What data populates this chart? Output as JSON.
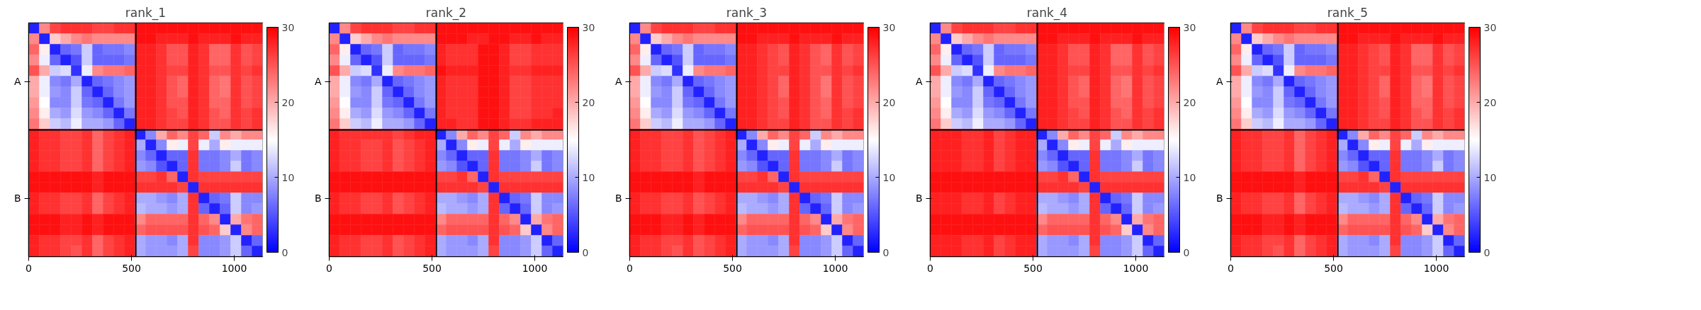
{
  "chart_data": [
    {
      "type": "heatmap",
      "title": "rank_1",
      "xlim": [
        0,
        1138
      ],
      "xticks": [
        0,
        500,
        1000
      ],
      "y_categories": [
        null,
        null,
        null,
        null,
        null,
        "A",
        null,
        null,
        null,
        null,
        null,
        null,
        null,
        null,
        null,
        null,
        "B",
        null,
        null,
        null,
        null,
        null
      ],
      "clim": [
        0,
        30
      ],
      "cticks": [
        0,
        10,
        20,
        30
      ],
      "grid": false,
      "ref_lines": [
        {
          "axis": "x",
          "value": 521,
          "color": "#000000"
        }
      ],
      "cells": [
        [
          2,
          22,
          26,
          27,
          27,
          27,
          26,
          26,
          27,
          27,
          29,
          29,
          29,
          29,
          29,
          29,
          29,
          29,
          29,
          29,
          29,
          29
        ],
        [
          22,
          2,
          18,
          20,
          22,
          23,
          22,
          22,
          22,
          22,
          29,
          29,
          28,
          28,
          28,
          29,
          28,
          28,
          28,
          29,
          28,
          28
        ],
        [
          24,
          16,
          2,
          6,
          7,
          12,
          6,
          7,
          7,
          8,
          28,
          28,
          27,
          25,
          25,
          28,
          27,
          24,
          24,
          27,
          25,
          26
        ],
        [
          22,
          14,
          6,
          2,
          5,
          12,
          6,
          6,
          6,
          7,
          28,
          28,
          27,
          25,
          25,
          28,
          27,
          24,
          24,
          27,
          25,
          26
        ],
        [
          25,
          20,
          12,
          13,
          3,
          14,
          22,
          23,
          23,
          24,
          28,
          28,
          27,
          26,
          26,
          28,
          27,
          25,
          25,
          27,
          26,
          27
        ],
        [
          20,
          14,
          8,
          7,
          10,
          2,
          6,
          7,
          8,
          9,
          28,
          28,
          27,
          25,
          24,
          28,
          27,
          24,
          23,
          27,
          25,
          26
        ],
        [
          20,
          14,
          9,
          8,
          12,
          6,
          2,
          6,
          8,
          9,
          28,
          28,
          27,
          25,
          24,
          28,
          27,
          24,
          23,
          27,
          25,
          26
        ],
        [
          21,
          15,
          8,
          8,
          12,
          7,
          6,
          2,
          7,
          9,
          28,
          28,
          27,
          25,
          25,
          28,
          27,
          24,
          24,
          27,
          25,
          26
        ],
        [
          22,
          16,
          10,
          9,
          13,
          9,
          8,
          6,
          2,
          7,
          28,
          28,
          27,
          26,
          25,
          28,
          27,
          25,
          24,
          27,
          26,
          27
        ],
        [
          23,
          18,
          12,
          11,
          14,
          10,
          10,
          9,
          6,
          2,
          28,
          28,
          27,
          26,
          26,
          28,
          27,
          25,
          25,
          27,
          26,
          27
        ],
        [
          28,
          27,
          27,
          26,
          26,
          27,
          24,
          26,
          27,
          28,
          2,
          8,
          20,
          24,
          22,
          26,
          24,
          12,
          22,
          20,
          22,
          22
        ],
        [
          28,
          27,
          27,
          26,
          26,
          27,
          24,
          26,
          27,
          28,
          10,
          2,
          8,
          16,
          14,
          26,
          14,
          10,
          16,
          14,
          14,
          14
        ],
        [
          28,
          27,
          27,
          26,
          26,
          27,
          24,
          26,
          27,
          28,
          8,
          6,
          2,
          6,
          6,
          27,
          7,
          7,
          8,
          10,
          7,
          8
        ],
        [
          28,
          27,
          27,
          26,
          26,
          27,
          24,
          26,
          27,
          28,
          9,
          8,
          5,
          2,
          6,
          27,
          7,
          7,
          8,
          12,
          7,
          8
        ],
        [
          29,
          29,
          29,
          29,
          29,
          29,
          28,
          29,
          29,
          29,
          26,
          26,
          27,
          24,
          2,
          27,
          26,
          26,
          26,
          26,
          26,
          26
        ],
        [
          29,
          29,
          29,
          29,
          29,
          29,
          28,
          29,
          29,
          29,
          27,
          27,
          27,
          27,
          26,
          2,
          27,
          27,
          27,
          27,
          27,
          27
        ],
        [
          28,
          27,
          27,
          26,
          26,
          27,
          24,
          26,
          27,
          28,
          10,
          10,
          9,
          8,
          10,
          27,
          2,
          6,
          7,
          12,
          8,
          8
        ],
        [
          28,
          27,
          27,
          26,
          26,
          27,
          24,
          26,
          27,
          28,
          11,
          10,
          10,
          9,
          10,
          27,
          6,
          2,
          6,
          12,
          8,
          9
        ],
        [
          29,
          29,
          29,
          28,
          28,
          29,
          28,
          29,
          29,
          29,
          22,
          24,
          24,
          24,
          24,
          27,
          24,
          22,
          2,
          20,
          23,
          24
        ],
        [
          29,
          29,
          29,
          28,
          28,
          29,
          28,
          29,
          29,
          29,
          24,
          25,
          25,
          25,
          25,
          27,
          25,
          24,
          18,
          2,
          22,
          24
        ],
        [
          28,
          27,
          27,
          26,
          26,
          27,
          24,
          26,
          27,
          28,
          10,
          9,
          9,
          8,
          10,
          27,
          8,
          8,
          9,
          12,
          2,
          6
        ],
        [
          28,
          27,
          27,
          26,
          25,
          27,
          24,
          26,
          27,
          28,
          10,
          9,
          9,
          9,
          10,
          26,
          8,
          8,
          9,
          12,
          6,
          2
        ]
      ]
    },
    {
      "type": "heatmap",
      "title": "rank_2",
      "xlim": [
        0,
        1138
      ],
      "xticks": [
        0,
        500,
        1000
      ],
      "y_categories": [
        null,
        null,
        null,
        null,
        null,
        "A",
        null,
        null,
        null,
        null,
        null,
        null,
        null,
        null,
        null,
        null,
        "B",
        null,
        null,
        null,
        null,
        null
      ],
      "clim": [
        0,
        30
      ],
      "cticks": [
        0,
        10,
        20,
        30
      ],
      "grid": false,
      "ref_lines": [
        {
          "axis": "x",
          "value": 521,
          "color": "#000000"
        }
      ],
      "cells": [
        [
          2,
          22,
          26,
          27,
          27,
          27,
          26,
          26,
          27,
          27,
          29,
          29,
          29,
          29,
          29,
          29,
          29,
          29,
          29,
          29,
          29,
          29
        ],
        [
          22,
          2,
          18,
          20,
          22,
          23,
          22,
          22,
          22,
          22,
          29,
          29,
          29,
          28,
          28,
          29,
          29,
          28,
          28,
          29,
          28,
          28
        ],
        [
          24,
          16,
          2,
          6,
          7,
          12,
          6,
          7,
          7,
          8,
          28,
          27,
          27,
          27,
          29,
          29,
          28,
          26,
          26,
          27,
          27,
          27
        ],
        [
          22,
          14,
          6,
          2,
          5,
          12,
          6,
          6,
          6,
          7,
          28,
          27,
          27,
          27,
          29,
          29,
          28,
          26,
          26,
          27,
          27,
          27
        ],
        [
          25,
          20,
          12,
          13,
          3,
          14,
          22,
          23,
          23,
          24,
          29,
          28,
          28,
          28,
          29,
          29,
          28,
          27,
          27,
          28,
          28,
          28
        ],
        [
          20,
          14,
          8,
          7,
          10,
          2,
          6,
          7,
          8,
          9,
          28,
          27,
          27,
          27,
          29,
          29,
          28,
          26,
          26,
          27,
          27,
          27
        ],
        [
          20,
          14,
          9,
          8,
          12,
          6,
          2,
          6,
          8,
          9,
          28,
          27,
          27,
          27,
          29,
          29,
          28,
          26,
          26,
          27,
          27,
          27
        ],
        [
          21,
          15,
          8,
          8,
          12,
          7,
          6,
          2,
          7,
          9,
          28,
          27,
          27,
          27,
          29,
          29,
          28,
          26,
          26,
          27,
          27,
          27
        ],
        [
          22,
          16,
          10,
          9,
          13,
          9,
          8,
          6,
          2,
          7,
          28,
          27,
          27,
          27,
          29,
          29,
          28,
          26,
          26,
          27,
          27,
          28
        ],
        [
          23,
          18,
          12,
          11,
          14,
          10,
          10,
          9,
          6,
          2,
          28,
          28,
          27,
          27,
          29,
          29,
          28,
          27,
          27,
          28,
          28,
          28
        ],
        [
          28,
          27,
          27,
          27,
          27,
          27,
          26,
          27,
          28,
          28,
          2,
          8,
          20,
          24,
          22,
          26,
          24,
          12,
          22,
          20,
          22,
          22
        ],
        [
          28,
          27,
          27,
          26,
          26,
          27,
          25,
          26,
          27,
          28,
          10,
          2,
          8,
          16,
          14,
          26,
          14,
          10,
          16,
          14,
          14,
          14
        ],
        [
          28,
          27,
          27,
          26,
          26,
          27,
          25,
          26,
          27,
          28,
          8,
          6,
          2,
          6,
          6,
          27,
          7,
          7,
          8,
          10,
          7,
          8
        ],
        [
          28,
          27,
          27,
          26,
          26,
          27,
          25,
          26,
          27,
          28,
          9,
          8,
          5,
          2,
          6,
          27,
          7,
          7,
          8,
          12,
          7,
          8
        ],
        [
          29,
          29,
          29,
          29,
          29,
          29,
          29,
          29,
          29,
          29,
          26,
          26,
          27,
          24,
          2,
          27,
          26,
          26,
          26,
          26,
          26,
          26
        ],
        [
          29,
          29,
          29,
          29,
          29,
          29,
          29,
          29,
          29,
          29,
          27,
          27,
          27,
          27,
          26,
          2,
          27,
          27,
          27,
          27,
          27,
          27
        ],
        [
          28,
          27,
          27,
          26,
          26,
          27,
          25,
          26,
          27,
          28,
          10,
          10,
          9,
          8,
          10,
          27,
          2,
          6,
          7,
          12,
          8,
          8
        ],
        [
          28,
          27,
          27,
          26,
          26,
          27,
          25,
          26,
          27,
          28,
          11,
          10,
          10,
          9,
          10,
          27,
          6,
          2,
          6,
          12,
          8,
          9
        ],
        [
          29,
          29,
          29,
          29,
          29,
          29,
          29,
          29,
          29,
          29,
          22,
          24,
          24,
          24,
          24,
          27,
          24,
          22,
          2,
          20,
          23,
          24
        ],
        [
          29,
          29,
          29,
          29,
          29,
          29,
          29,
          29,
          29,
          29,
          24,
          25,
          25,
          25,
          25,
          27,
          25,
          24,
          18,
          2,
          22,
          24
        ],
        [
          28,
          27,
          27,
          26,
          26,
          27,
          25,
          26,
          27,
          28,
          10,
          9,
          9,
          8,
          10,
          27,
          8,
          8,
          9,
          12,
          2,
          6
        ],
        [
          28,
          27,
          27,
          26,
          26,
          27,
          25,
          26,
          27,
          28,
          10,
          9,
          9,
          9,
          10,
          26,
          8,
          8,
          9,
          12,
          6,
          2
        ]
      ]
    },
    {
      "type": "heatmap",
      "title": "rank_3",
      "xlim": [
        0,
        1138
      ],
      "xticks": [
        0,
        500,
        1000
      ],
      "y_categories": [
        null,
        null,
        null,
        null,
        null,
        "A",
        null,
        null,
        null,
        null,
        null,
        null,
        null,
        null,
        null,
        null,
        "B",
        null,
        null,
        null,
        null,
        null
      ],
      "clim": [
        0,
        30
      ],
      "cticks": [
        0,
        10,
        20,
        30
      ],
      "grid": false,
      "ref_lines": [
        {
          "axis": "x",
          "value": 521,
          "color": "#000000"
        }
      ],
      "cells": [
        [
          2,
          22,
          26,
          27,
          27,
          27,
          26,
          26,
          27,
          27,
          29,
          29,
          29,
          29,
          29,
          29,
          29,
          29,
          29,
          29,
          29,
          29
        ],
        [
          22,
          2,
          18,
          20,
          22,
          23,
          22,
          22,
          22,
          22,
          29,
          29,
          28,
          28,
          28,
          29,
          28,
          28,
          28,
          29,
          28,
          28
        ],
        [
          24,
          16,
          2,
          6,
          7,
          12,
          6,
          7,
          7,
          8,
          28,
          28,
          27,
          26,
          25,
          28,
          27,
          25,
          24,
          27,
          25,
          26
        ],
        [
          22,
          14,
          6,
          2,
          5,
          12,
          6,
          6,
          6,
          7,
          28,
          28,
          27,
          26,
          25,
          28,
          27,
          25,
          24,
          27,
          25,
          26
        ],
        [
          25,
          20,
          12,
          13,
          3,
          14,
          22,
          23,
          23,
          24,
          28,
          28,
          27,
          26,
          26,
          28,
          27,
          25,
          25,
          27,
          26,
          27
        ],
        [
          20,
          14,
          8,
          7,
          10,
          2,
          6,
          7,
          8,
          9,
          28,
          28,
          27,
          26,
          24,
          28,
          27,
          25,
          23,
          27,
          25,
          26
        ],
        [
          20,
          14,
          9,
          8,
          12,
          6,
          2,
          6,
          8,
          9,
          28,
          28,
          27,
          26,
          24,
          28,
          27,
          25,
          23,
          27,
          25,
          26
        ],
        [
          21,
          15,
          8,
          8,
          12,
          7,
          6,
          2,
          7,
          9,
          28,
          28,
          27,
          26,
          25,
          28,
          27,
          25,
          24,
          27,
          25,
          26
        ],
        [
          22,
          16,
          10,
          9,
          13,
          9,
          8,
          6,
          2,
          7,
          28,
          28,
          27,
          26,
          25,
          28,
          27,
          25,
          24,
          27,
          26,
          27
        ],
        [
          23,
          18,
          12,
          11,
          14,
          10,
          10,
          9,
          6,
          2,
          28,
          28,
          27,
          26,
          26,
          28,
          27,
          25,
          25,
          27,
          26,
          27
        ],
        [
          28,
          27,
          27,
          26,
          26,
          27,
          25,
          26,
          27,
          28,
          2,
          8,
          20,
          24,
          22,
          26,
          24,
          12,
          22,
          20,
          22,
          22
        ],
        [
          28,
          27,
          27,
          26,
          26,
          27,
          25,
          26,
          27,
          28,
          10,
          2,
          8,
          16,
          14,
          26,
          14,
          10,
          16,
          14,
          14,
          14
        ],
        [
          28,
          27,
          27,
          26,
          26,
          27,
          25,
          26,
          27,
          28,
          8,
          6,
          2,
          6,
          6,
          27,
          7,
          7,
          8,
          10,
          7,
          8
        ],
        [
          28,
          27,
          27,
          26,
          26,
          27,
          25,
          26,
          27,
          28,
          9,
          8,
          5,
          2,
          6,
          27,
          7,
          7,
          8,
          12,
          7,
          8
        ],
        [
          29,
          29,
          29,
          29,
          29,
          29,
          28,
          29,
          29,
          29,
          26,
          26,
          27,
          24,
          2,
          27,
          26,
          26,
          26,
          26,
          26,
          26
        ],
        [
          29,
          29,
          29,
          29,
          29,
          29,
          28,
          29,
          29,
          29,
          27,
          27,
          27,
          27,
          26,
          2,
          27,
          27,
          27,
          27,
          27,
          27
        ],
        [
          28,
          27,
          27,
          26,
          26,
          27,
          25,
          26,
          27,
          28,
          10,
          10,
          9,
          8,
          10,
          27,
          2,
          6,
          7,
          12,
          8,
          8
        ],
        [
          28,
          27,
          27,
          26,
          26,
          27,
          25,
          26,
          27,
          28,
          11,
          10,
          10,
          9,
          10,
          27,
          6,
          2,
          6,
          12,
          8,
          9
        ],
        [
          29,
          29,
          29,
          28,
          28,
          29,
          28,
          29,
          29,
          29,
          22,
          24,
          24,
          24,
          24,
          27,
          24,
          22,
          2,
          20,
          23,
          24
        ],
        [
          29,
          29,
          29,
          28,
          28,
          29,
          28,
          29,
          29,
          29,
          24,
          25,
          25,
          25,
          25,
          27,
          25,
          24,
          18,
          2,
          22,
          24
        ],
        [
          28,
          27,
          27,
          26,
          26,
          27,
          25,
          26,
          27,
          28,
          10,
          9,
          9,
          8,
          10,
          27,
          8,
          8,
          9,
          12,
          2,
          6
        ],
        [
          28,
          27,
          27,
          26,
          25,
          27,
          25,
          26,
          27,
          28,
          10,
          9,
          9,
          9,
          10,
          26,
          8,
          8,
          9,
          12,
          6,
          2
        ]
      ]
    },
    {
      "type": "heatmap",
      "title": "rank_4",
      "xlim": [
        0,
        1138
      ],
      "xticks": [
        0,
        500,
        1000
      ],
      "y_categories": [
        null,
        null,
        null,
        null,
        null,
        "A",
        null,
        null,
        null,
        null,
        null,
        null,
        null,
        null,
        null,
        null,
        "B",
        null,
        null,
        null,
        null,
        null
      ],
      "clim": [
        0,
        30
      ],
      "cticks": [
        0,
        10,
        20,
        30
      ],
      "grid": false,
      "ref_lines": [
        {
          "axis": "x",
          "value": 521,
          "color": "#000000"
        }
      ],
      "cells": [
        [
          2,
          22,
          26,
          27,
          27,
          27,
          26,
          26,
          27,
          27,
          29,
          29,
          29,
          29,
          29,
          29,
          29,
          29,
          29,
          29,
          29,
          29
        ],
        [
          22,
          2,
          18,
          20,
          22,
          23,
          22,
          22,
          22,
          22,
          29,
          29,
          28,
          28,
          28,
          29,
          28,
          28,
          28,
          29,
          28,
          28
        ],
        [
          24,
          16,
          2,
          6,
          7,
          12,
          6,
          7,
          7,
          8,
          28,
          28,
          27,
          25,
          25,
          28,
          27,
          24,
          24,
          27,
          25,
          26
        ],
        [
          22,
          14,
          6,
          2,
          5,
          12,
          6,
          6,
          6,
          7,
          28,
          28,
          27,
          25,
          25,
          28,
          27,
          24,
          24,
          27,
          25,
          26
        ],
        [
          25,
          20,
          12,
          13,
          3,
          14,
          22,
          23,
          23,
          24,
          28,
          28,
          27,
          26,
          26,
          28,
          27,
          25,
          25,
          27,
          26,
          27
        ],
        [
          20,
          14,
          8,
          7,
          10,
          2,
          6,
          7,
          8,
          9,
          28,
          28,
          27,
          25,
          24,
          28,
          27,
          24,
          23,
          27,
          25,
          26
        ],
        [
          20,
          14,
          9,
          8,
          12,
          6,
          2,
          6,
          8,
          9,
          28,
          28,
          27,
          25,
          24,
          28,
          27,
          24,
          23,
          27,
          25,
          26
        ],
        [
          21,
          15,
          8,
          8,
          12,
          7,
          6,
          2,
          7,
          9,
          28,
          28,
          27,
          25,
          25,
          28,
          27,
          24,
          24,
          27,
          25,
          26
        ],
        [
          22,
          16,
          10,
          9,
          13,
          9,
          8,
          6,
          2,
          7,
          28,
          28,
          27,
          26,
          25,
          28,
          27,
          25,
          24,
          27,
          26,
          27
        ],
        [
          23,
          18,
          12,
          11,
          14,
          10,
          10,
          9,
          6,
          2,
          28,
          28,
          27,
          26,
          26,
          28,
          27,
          25,
          25,
          27,
          26,
          27
        ],
        [
          28,
          28,
          28,
          27,
          27,
          28,
          26,
          27,
          28,
          28,
          2,
          8,
          20,
          24,
          22,
          26,
          24,
          12,
          22,
          20,
          22,
          22
        ],
        [
          28,
          28,
          28,
          27,
          27,
          28,
          26,
          27,
          28,
          28,
          10,
          2,
          8,
          16,
          14,
          26,
          14,
          10,
          16,
          14,
          14,
          14
        ],
        [
          28,
          28,
          28,
          27,
          27,
          28,
          26,
          27,
          28,
          28,
          8,
          6,
          2,
          6,
          6,
          27,
          7,
          7,
          8,
          10,
          7,
          8
        ],
        [
          28,
          28,
          28,
          27,
          27,
          28,
          26,
          27,
          28,
          28,
          9,
          8,
          5,
          2,
          6,
          27,
          7,
          7,
          8,
          12,
          7,
          8
        ],
        [
          29,
          29,
          29,
          29,
          29,
          29,
          29,
          29,
          29,
          29,
          26,
          26,
          27,
          24,
          2,
          27,
          26,
          26,
          26,
          26,
          26,
          26
        ],
        [
          29,
          29,
          29,
          29,
          29,
          29,
          29,
          29,
          29,
          29,
          27,
          27,
          27,
          27,
          26,
          2,
          27,
          27,
          27,
          27,
          27,
          27
        ],
        [
          28,
          28,
          28,
          27,
          27,
          28,
          26,
          27,
          28,
          28,
          10,
          10,
          9,
          8,
          10,
          27,
          2,
          6,
          7,
          12,
          8,
          8
        ],
        [
          28,
          28,
          28,
          27,
          27,
          28,
          26,
          27,
          28,
          28,
          11,
          10,
          10,
          9,
          10,
          27,
          6,
          2,
          6,
          12,
          8,
          9
        ],
        [
          29,
          29,
          29,
          29,
          29,
          29,
          29,
          29,
          29,
          29,
          22,
          24,
          24,
          24,
          24,
          27,
          24,
          22,
          2,
          20,
          23,
          24
        ],
        [
          29,
          29,
          29,
          29,
          29,
          29,
          29,
          29,
          29,
          29,
          24,
          25,
          25,
          25,
          25,
          27,
          25,
          24,
          18,
          2,
          22,
          24
        ],
        [
          28,
          28,
          28,
          27,
          27,
          28,
          26,
          27,
          28,
          28,
          10,
          9,
          9,
          8,
          10,
          27,
          8,
          8,
          9,
          12,
          2,
          6
        ],
        [
          28,
          28,
          28,
          27,
          27,
          28,
          26,
          27,
          28,
          28,
          10,
          9,
          9,
          9,
          10,
          26,
          8,
          8,
          9,
          12,
          6,
          2
        ]
      ]
    },
    {
      "type": "heatmap",
      "title": "rank_5",
      "xlim": [
        0,
        1138
      ],
      "xticks": [
        0,
        500,
        1000
      ],
      "y_categories": [
        null,
        null,
        null,
        null,
        null,
        "A",
        null,
        null,
        null,
        null,
        null,
        null,
        null,
        null,
        null,
        null,
        "B",
        null,
        null,
        null,
        null,
        null
      ],
      "clim": [
        0,
        30
      ],
      "cticks": [
        0,
        10,
        20,
        30
      ],
      "grid": false,
      "ref_lines": [
        {
          "axis": "x",
          "value": 521,
          "color": "#000000"
        }
      ],
      "cells": [
        [
          2,
          22,
          26,
          27,
          27,
          27,
          26,
          26,
          27,
          27,
          29,
          29,
          29,
          29,
          29,
          29,
          29,
          29,
          29,
          29,
          29,
          29
        ],
        [
          22,
          2,
          18,
          20,
          22,
          23,
          22,
          22,
          22,
          22,
          29,
          29,
          28,
          28,
          28,
          29,
          28,
          28,
          28,
          29,
          28,
          28
        ],
        [
          24,
          16,
          2,
          6,
          7,
          12,
          6,
          7,
          7,
          8,
          28,
          28,
          27,
          26,
          25,
          28,
          27,
          24,
          24,
          27,
          25,
          26
        ],
        [
          22,
          14,
          6,
          2,
          5,
          12,
          6,
          6,
          6,
          7,
          28,
          28,
          27,
          26,
          25,
          28,
          27,
          24,
          24,
          27,
          25,
          26
        ],
        [
          25,
          20,
          12,
          13,
          3,
          14,
          22,
          23,
          23,
          24,
          28,
          28,
          27,
          26,
          26,
          28,
          27,
          25,
          25,
          27,
          26,
          27
        ],
        [
          20,
          14,
          8,
          7,
          10,
          2,
          6,
          7,
          8,
          9,
          28,
          28,
          27,
          26,
          24,
          28,
          27,
          24,
          23,
          27,
          25,
          26
        ],
        [
          20,
          14,
          9,
          8,
          12,
          6,
          2,
          6,
          8,
          9,
          28,
          28,
          27,
          26,
          24,
          28,
          27,
          24,
          23,
          27,
          25,
          26
        ],
        [
          21,
          15,
          8,
          8,
          12,
          7,
          6,
          2,
          7,
          9,
          28,
          28,
          27,
          26,
          25,
          28,
          27,
          24,
          24,
          27,
          25,
          26
        ],
        [
          22,
          16,
          10,
          9,
          13,
          9,
          8,
          6,
          2,
          7,
          28,
          28,
          27,
          26,
          25,
          28,
          27,
          25,
          24,
          27,
          26,
          27
        ],
        [
          23,
          18,
          12,
          11,
          14,
          10,
          10,
          9,
          6,
          2,
          28,
          28,
          27,
          26,
          26,
          28,
          27,
          25,
          25,
          27,
          26,
          27
        ],
        [
          28,
          27,
          27,
          26,
          26,
          27,
          24,
          26,
          27,
          28,
          2,
          8,
          20,
          24,
          22,
          26,
          24,
          12,
          22,
          20,
          22,
          22
        ],
        [
          28,
          27,
          27,
          26,
          26,
          27,
          24,
          26,
          27,
          28,
          10,
          2,
          8,
          16,
          14,
          26,
          14,
          10,
          16,
          14,
          14,
          14
        ],
        [
          28,
          27,
          27,
          26,
          26,
          27,
          24,
          26,
          27,
          28,
          8,
          6,
          2,
          6,
          6,
          27,
          7,
          7,
          8,
          10,
          7,
          8
        ],
        [
          28,
          27,
          27,
          26,
          26,
          27,
          24,
          26,
          27,
          28,
          9,
          8,
          5,
          2,
          6,
          27,
          7,
          7,
          8,
          12,
          7,
          8
        ],
        [
          29,
          29,
          29,
          29,
          29,
          29,
          28,
          29,
          29,
          29,
          26,
          26,
          27,
          24,
          2,
          27,
          26,
          26,
          26,
          26,
          26,
          26
        ],
        [
          29,
          29,
          29,
          29,
          29,
          29,
          28,
          29,
          29,
          29,
          27,
          27,
          27,
          27,
          26,
          2,
          27,
          27,
          27,
          27,
          27,
          27
        ],
        [
          28,
          27,
          27,
          26,
          26,
          27,
          24,
          26,
          27,
          28,
          10,
          10,
          9,
          8,
          10,
          27,
          2,
          6,
          7,
          12,
          8,
          8
        ],
        [
          28,
          27,
          27,
          26,
          26,
          27,
          24,
          26,
          27,
          28,
          11,
          10,
          10,
          9,
          10,
          27,
          6,
          2,
          6,
          12,
          8,
          9
        ],
        [
          29,
          29,
          29,
          28,
          28,
          29,
          28,
          29,
          29,
          29,
          22,
          24,
          24,
          24,
          24,
          27,
          24,
          22,
          2,
          20,
          23,
          24
        ],
        [
          29,
          29,
          29,
          28,
          28,
          29,
          28,
          29,
          29,
          29,
          24,
          25,
          25,
          25,
          25,
          27,
          25,
          24,
          18,
          2,
          22,
          24
        ],
        [
          28,
          27,
          27,
          26,
          26,
          27,
          24,
          26,
          27,
          28,
          10,
          9,
          9,
          8,
          10,
          27,
          8,
          8,
          9,
          12,
          2,
          6
        ],
        [
          28,
          27,
          27,
          26,
          25,
          27,
          24,
          26,
          27,
          28,
          10,
          9,
          9,
          9,
          10,
          26,
          8,
          8,
          9,
          12,
          6,
          2
        ]
      ]
    }
  ]
}
